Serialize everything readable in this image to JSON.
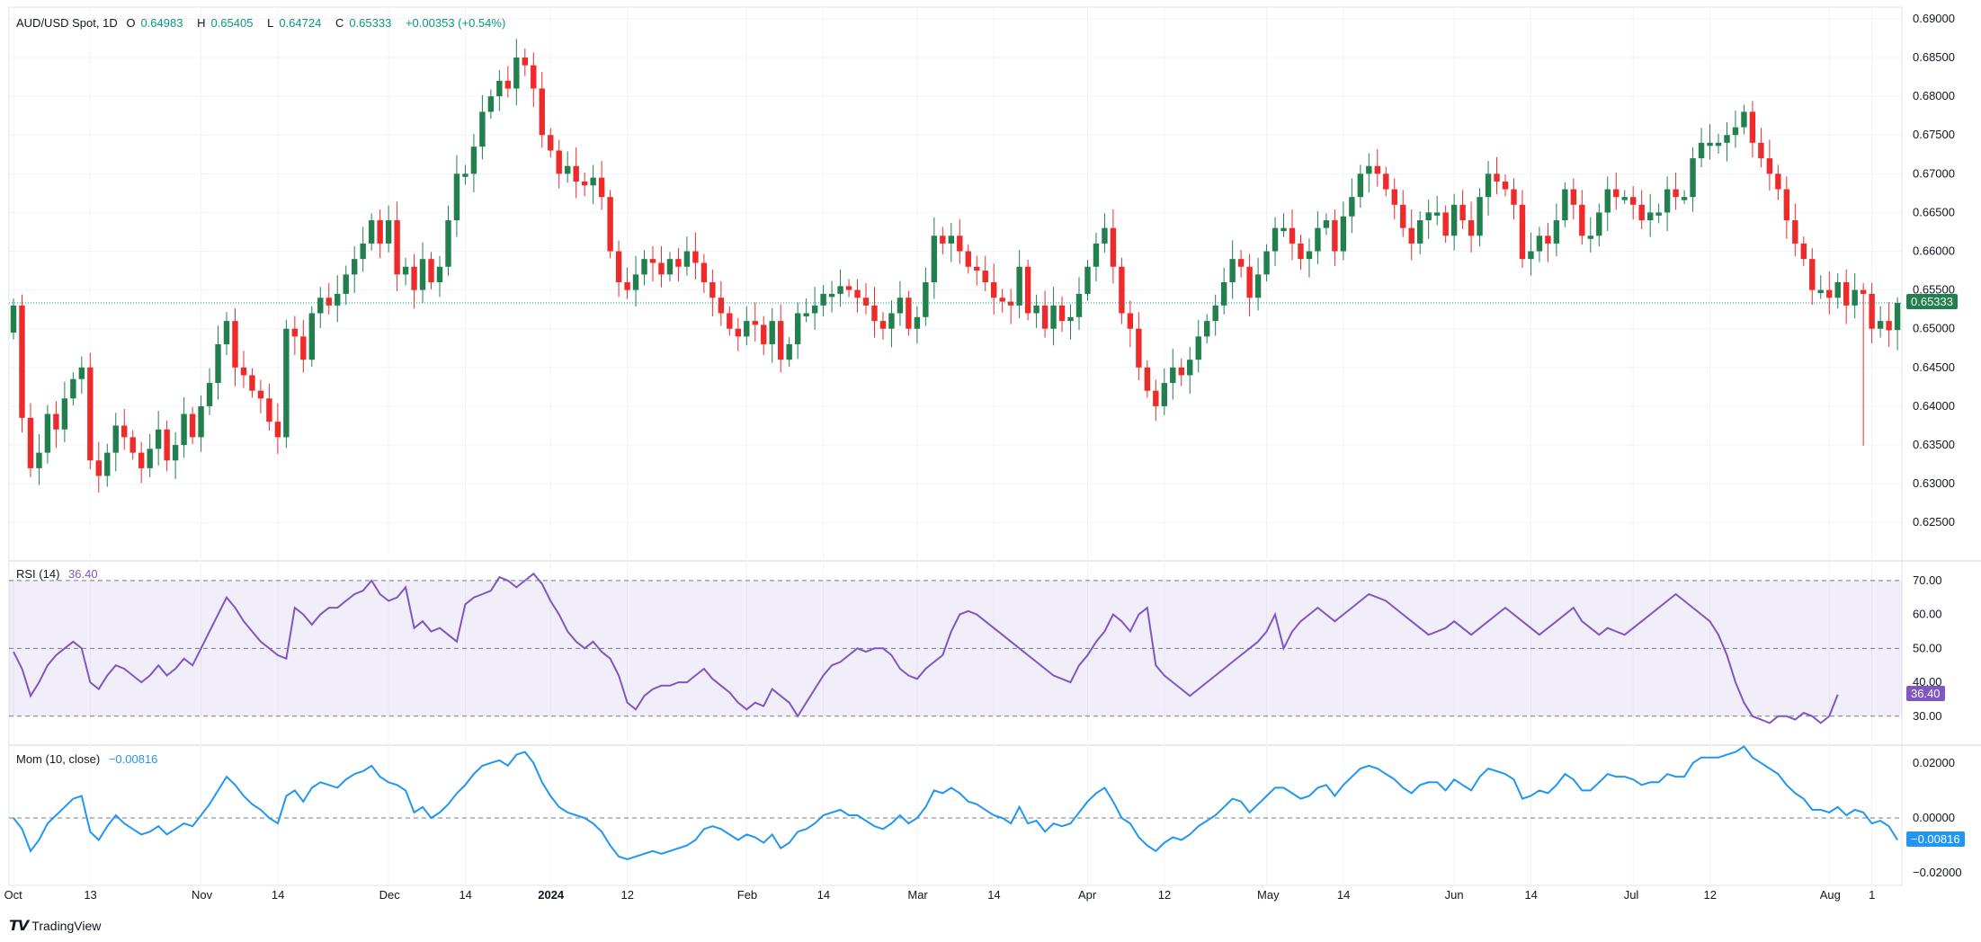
{
  "header": {
    "symbol": "AUD/USD Spot, 1D",
    "o_label": "O",
    "o_value": "0.64983",
    "h_label": "H",
    "h_value": "0.65405",
    "l_label": "L",
    "l_value": "0.64724",
    "c_label": "C",
    "c_value": "0.65333",
    "change": "+0.00353 (+0.54%)"
  },
  "price_tag": "0.65333",
  "rsi_legend": {
    "label": "RSI (14)",
    "value": "36.40"
  },
  "rsi_tag": "36.40",
  "mom_legend": {
    "label": "Mom (10, close)",
    "value": "−0.00816"
  },
  "mom_tag": "−0.00816",
  "brand": {
    "name": "TradingView"
  },
  "colors": {
    "up": "#26a69a",
    "upDark": "#22804f",
    "down": "#ef2a2a",
    "rsi": "#7e57c2",
    "mom": "#2196f3",
    "price_line": "#089981"
  },
  "chart_data": [
    {
      "type": "candlestick",
      "title": "AUD/USD Spot, 1D",
      "y_ticks": [
        "0.69000",
        "0.68500",
        "0.68000",
        "0.67500",
        "0.67000",
        "0.66500",
        "0.66000",
        "0.65500",
        "0.65000",
        "0.64500",
        "0.64000",
        "0.63500",
        "0.63000",
        "0.62500"
      ],
      "ylim": [
        0.6205,
        0.6915
      ],
      "x_ticks": [
        {
          "label": "Oct",
          "i": 0
        },
        {
          "label": "13",
          "i": 9
        },
        {
          "label": "Nov",
          "i": 22
        },
        {
          "label": "14",
          "i": 31
        },
        {
          "label": "Dec",
          "i": 44
        },
        {
          "label": "14",
          "i": 53
        },
        {
          "label": "2024",
          "i": 63
        },
        {
          "label": "12",
          "i": 72
        },
        {
          "label": "Feb",
          "i": 86
        },
        {
          "label": "14",
          "i": 95
        },
        {
          "label": "Mar",
          "i": 106
        },
        {
          "label": "14",
          "i": 115
        },
        {
          "label": "Apr",
          "i": 126
        },
        {
          "label": "12",
          "i": 135
        },
        {
          "label": "May",
          "i": 147
        },
        {
          "label": "14",
          "i": 156
        },
        {
          "label": "Jun",
          "i": 169
        },
        {
          "label": "14",
          "i": 178
        },
        {
          "label": "Jul",
          "i": 190
        },
        {
          "label": "12",
          "i": 199
        },
        {
          "label": "Aug",
          "i": 213
        },
        {
          "label": "1",
          "i": 218
        }
      ],
      "close": [
        0.653,
        0.6385,
        0.632,
        0.634,
        0.639,
        0.637,
        0.641,
        0.6435,
        0.645,
        0.633,
        0.631,
        0.634,
        0.6375,
        0.636,
        0.634,
        0.632,
        0.6345,
        0.637,
        0.633,
        0.635,
        0.639,
        0.636,
        0.64,
        0.643,
        0.648,
        0.651,
        0.645,
        0.644,
        0.642,
        0.641,
        0.638,
        0.636,
        0.65,
        0.649,
        0.646,
        0.652,
        0.654,
        0.653,
        0.6545,
        0.657,
        0.659,
        0.661,
        0.664,
        0.661,
        0.664,
        0.657,
        0.658,
        0.655,
        0.659,
        0.656,
        0.658,
        0.664,
        0.67,
        0.67,
        0.6735,
        0.678,
        0.68,
        0.682,
        0.681,
        0.685,
        0.684,
        0.681,
        0.675,
        0.673,
        0.67,
        0.671,
        0.669,
        0.6685,
        0.6695,
        0.667,
        0.66,
        0.656,
        0.655,
        0.657,
        0.659,
        0.6585,
        0.657,
        0.659,
        0.658,
        0.66,
        0.6585,
        0.656,
        0.654,
        0.652,
        0.65,
        0.649,
        0.651,
        0.6505,
        0.648,
        0.651,
        0.646,
        0.648,
        0.652,
        0.652,
        0.653,
        0.6545,
        0.6545,
        0.6555,
        0.655,
        0.654,
        0.653,
        0.651,
        0.65,
        0.652,
        0.654,
        0.65,
        0.6515,
        0.656,
        0.662,
        0.661,
        0.662,
        0.66,
        0.658,
        0.6575,
        0.656,
        0.654,
        0.6535,
        0.653,
        0.658,
        0.652,
        0.653,
        0.65,
        0.653,
        0.651,
        0.6515,
        0.6545,
        0.658,
        0.661,
        0.663,
        0.658,
        0.652,
        0.65,
        0.645,
        0.642,
        0.64,
        0.643,
        0.645,
        0.644,
        0.646,
        0.649,
        0.651,
        0.653,
        0.656,
        0.659,
        0.658,
        0.654,
        0.657,
        0.66,
        0.663,
        0.663,
        0.661,
        0.659,
        0.66,
        0.663,
        0.664,
        0.66,
        0.6645,
        0.667,
        0.67,
        0.671,
        0.67,
        0.668,
        0.666,
        0.663,
        0.661,
        0.664,
        0.665,
        0.665,
        0.662,
        0.666,
        0.664,
        0.662,
        0.667,
        0.67,
        0.669,
        0.668,
        0.666,
        0.659,
        0.66,
        0.662,
        0.661,
        0.664,
        0.668,
        0.666,
        0.662,
        0.662,
        0.665,
        0.668,
        0.667,
        0.667,
        0.666,
        0.664,
        0.665,
        0.665,
        0.668,
        0.667,
        0.667,
        0.672,
        0.674,
        0.674,
        0.674,
        0.675,
        0.676,
        0.678,
        0.674,
        0.672,
        0.67,
        0.668,
        0.664,
        0.661,
        0.659,
        0.655,
        0.655,
        0.654,
        0.656,
        0.653,
        0.655,
        0.6545,
        0.65,
        0.651,
        0.6498,
        0.6533
      ],
      "open": [
        0.6495,
        0.653,
        0.6385,
        0.632,
        0.634,
        0.639,
        0.637,
        0.641,
        0.6435,
        0.645,
        0.633,
        0.631,
        0.634,
        0.6375,
        0.636,
        0.634,
        0.632,
        0.6345,
        0.637,
        0.633,
        0.635,
        0.639,
        0.636,
        0.64,
        0.643,
        0.648,
        0.651,
        0.645,
        0.644,
        0.642,
        0.641,
        0.638,
        0.636,
        0.65,
        0.649,
        0.646,
        0.652,
        0.654,
        0.653,
        0.6545,
        0.657,
        0.659,
        0.661,
        0.664,
        0.661,
        0.664,
        0.657,
        0.658,
        0.655,
        0.659,
        0.656,
        0.658,
        0.664,
        0.67,
        0.67,
        0.6735,
        0.678,
        0.68,
        0.682,
        0.681,
        0.685,
        0.684,
        0.681,
        0.675,
        0.673,
        0.67,
        0.671,
        0.669,
        0.6685,
        0.6695,
        0.667,
        0.66,
        0.656,
        0.655,
        0.657,
        0.659,
        0.6585,
        0.657,
        0.659,
        0.658,
        0.66,
        0.6585,
        0.656,
        0.654,
        0.652,
        0.65,
        0.649,
        0.651,
        0.6505,
        0.648,
        0.651,
        0.646,
        0.648,
        0.652,
        0.652,
        0.653,
        0.6545,
        0.6545,
        0.6555,
        0.655,
        0.654,
        0.653,
        0.651,
        0.65,
        0.652,
        0.654,
        0.65,
        0.6515,
        0.656,
        0.662,
        0.661,
        0.662,
        0.66,
        0.658,
        0.6575,
        0.656,
        0.654,
        0.6535,
        0.653,
        0.658,
        0.652,
        0.653,
        0.65,
        0.653,
        0.651,
        0.6515,
        0.6545,
        0.658,
        0.661,
        0.663,
        0.658,
        0.652,
        0.65,
        0.645,
        0.642,
        0.64,
        0.643,
        0.645,
        0.644,
        0.646,
        0.649,
        0.651,
        0.653,
        0.656,
        0.659,
        0.658,
        0.654,
        0.657,
        0.66,
        0.663,
        0.663,
        0.661,
        0.659,
        0.66,
        0.663,
        0.664,
        0.66,
        0.6645,
        0.667,
        0.67,
        0.671,
        0.67,
        0.668,
        0.666,
        0.663,
        0.661,
        0.664,
        0.665,
        0.665,
        0.662,
        0.666,
        0.664,
        0.662,
        0.667,
        0.67,
        0.669,
        0.668,
        0.666,
        0.659,
        0.66,
        0.662,
        0.661,
        0.664,
        0.668,
        0.666,
        0.662,
        0.662,
        0.665,
        0.668,
        0.667,
        0.667,
        0.666,
        0.664,
        0.665,
        0.665,
        0.668,
        0.667,
        0.667,
        0.672,
        0.674,
        0.674,
        0.674,
        0.675,
        0.676,
        0.678,
        0.674,
        0.672,
        0.67,
        0.668,
        0.664,
        0.661,
        0.659,
        0.655,
        0.655,
        0.654,
        0.656,
        0.653,
        0.655,
        0.6545,
        0.65,
        0.651,
        0.6498
      ],
      "last": {
        "open": 0.64983,
        "high": 0.65405,
        "low": 0.64724,
        "close": 0.65333
      },
      "notable_low": {
        "i": 217,
        "value": 0.6349
      }
    },
    {
      "type": "line",
      "title": "RSI (14)",
      "ylim": [
        22,
        75
      ],
      "y_ticks": [
        "70.00",
        "60.00",
        "50.00",
        "40.00",
        "30.00"
      ],
      "band": [
        30,
        70
      ],
      "mid": 50,
      "values": [
        49,
        44,
        36,
        40,
        45,
        48,
        50,
        52,
        50,
        40,
        38,
        42,
        45,
        44,
        42,
        40,
        42,
        45,
        42,
        44,
        47,
        45,
        50,
        55,
        60,
        65,
        62,
        58,
        55,
        52,
        50,
        48,
        47,
        62,
        60,
        57,
        60,
        62,
        62,
        64,
        66,
        67,
        70,
        66,
        64,
        65,
        68,
        56,
        58,
        55,
        56,
        54,
        52,
        63,
        65,
        66,
        67,
        71,
        70,
        68,
        70,
        72,
        69,
        64,
        60,
        55,
        52,
        50,
        52,
        49,
        47,
        42,
        34,
        32,
        36,
        38,
        39,
        39,
        40,
        40,
        42,
        44,
        41,
        39,
        37,
        34,
        32,
        34,
        33,
        38,
        36,
        34,
        30,
        34,
        38,
        42,
        45,
        46,
        48,
        50,
        49,
        50,
        50,
        48,
        44,
        42,
        41,
        44,
        46,
        48,
        55,
        60,
        61,
        60,
        58,
        56,
        54,
        52,
        50,
        48,
        46,
        44,
        42,
        41,
        40,
        45,
        48,
        52,
        55,
        60,
        58,
        55,
        60,
        62,
        45,
        42,
        40,
        38,
        36,
        38,
        40,
        42,
        44,
        46,
        48,
        50,
        52,
        55,
        60,
        50,
        55,
        58,
        60,
        62,
        60,
        58,
        60,
        62,
        64,
        66,
        65,
        64,
        62,
        60,
        58,
        56,
        54,
        55,
        56,
        58,
        56,
        54,
        56,
        58,
        60,
        62,
        60,
        58,
        56,
        54,
        56,
        58,
        60,
        62,
        58,
        56,
        54,
        56,
        55,
        54,
        56,
        58,
        60,
        62,
        64,
        66,
        64,
        62,
        60,
        58,
        54,
        48,
        40,
        34,
        30,
        29,
        28,
        30,
        30,
        29,
        31,
        30,
        28,
        30,
        36.4
      ]
    },
    {
      "type": "line",
      "title": "Mom (10, close)",
      "ylim": [
        -0.0245,
        0.0255
      ],
      "y_ticks": [
        "0.02000",
        "0.00000",
        "−0.02000"
      ],
      "zero": 0,
      "values": [
        0.0,
        -0.004,
        -0.012,
        -0.008,
        -0.002,
        0.001,
        0.004,
        0.007,
        0.008,
        -0.005,
        -0.008,
        -0.003,
        0.001,
        -0.002,
        -0.004,
        -0.006,
        -0.005,
        -0.003,
        -0.006,
        -0.004,
        -0.002,
        -0.003,
        0.001,
        0.005,
        0.01,
        0.015,
        0.012,
        0.008,
        0.005,
        0.003,
        0.0,
        -0.002,
        0.008,
        0.01,
        0.006,
        0.011,
        0.013,
        0.012,
        0.011,
        0.014,
        0.016,
        0.017,
        0.019,
        0.015,
        0.013,
        0.012,
        0.01,
        0.002,
        0.004,
        0.0,
        0.002,
        0.005,
        0.009,
        0.012,
        0.016,
        0.019,
        0.02,
        0.021,
        0.019,
        0.023,
        0.024,
        0.02,
        0.013,
        0.008,
        0.004,
        0.002,
        0.001,
        0.0,
        -0.002,
        -0.005,
        -0.01,
        -0.014,
        -0.015,
        -0.014,
        -0.013,
        -0.012,
        -0.013,
        -0.012,
        -0.011,
        -0.01,
        -0.008,
        -0.004,
        -0.003,
        -0.004,
        -0.006,
        -0.008,
        -0.006,
        -0.007,
        -0.009,
        -0.006,
        -0.011,
        -0.009,
        -0.005,
        -0.004,
        -0.002,
        0.001,
        0.002,
        0.003,
        0.001,
        0.001,
        -0.001,
        -0.003,
        -0.004,
        -0.002,
        0.001,
        -0.002,
        0.0,
        0.004,
        0.01,
        0.009,
        0.011,
        0.009,
        0.006,
        0.005,
        0.003,
        0.001,
        0.0,
        -0.002,
        0.004,
        -0.002,
        -0.001,
        -0.005,
        -0.002,
        -0.003,
        -0.002,
        0.002,
        0.006,
        0.009,
        0.011,
        0.006,
        0.0,
        -0.002,
        -0.007,
        -0.01,
        -0.012,
        -0.009,
        -0.007,
        -0.008,
        -0.006,
        -0.003,
        -0.001,
        0.001,
        0.004,
        0.007,
        0.006,
        0.002,
        0.005,
        0.008,
        0.011,
        0.011,
        0.009,
        0.007,
        0.008,
        0.011,
        0.012,
        0.008,
        0.012,
        0.015,
        0.018,
        0.019,
        0.018,
        0.016,
        0.014,
        0.011,
        0.009,
        0.012,
        0.013,
        0.013,
        0.01,
        0.014,
        0.012,
        0.01,
        0.015,
        0.018,
        0.017,
        0.016,
        0.014,
        0.007,
        0.008,
        0.01,
        0.009,
        0.012,
        0.016,
        0.014,
        0.01,
        0.01,
        0.013,
        0.016,
        0.015,
        0.015,
        0.014,
        0.012,
        0.013,
        0.013,
        0.016,
        0.015,
        0.015,
        0.02,
        0.022,
        0.022,
        0.022,
        0.023,
        0.024,
        0.026,
        0.022,
        0.02,
        0.018,
        0.016,
        0.012,
        0.009,
        0.007,
        0.003,
        0.003,
        0.002,
        0.004,
        0.001,
        0.003,
        0.002,
        -0.002,
        -0.001,
        -0.003,
        -0.008
      ]
    }
  ]
}
